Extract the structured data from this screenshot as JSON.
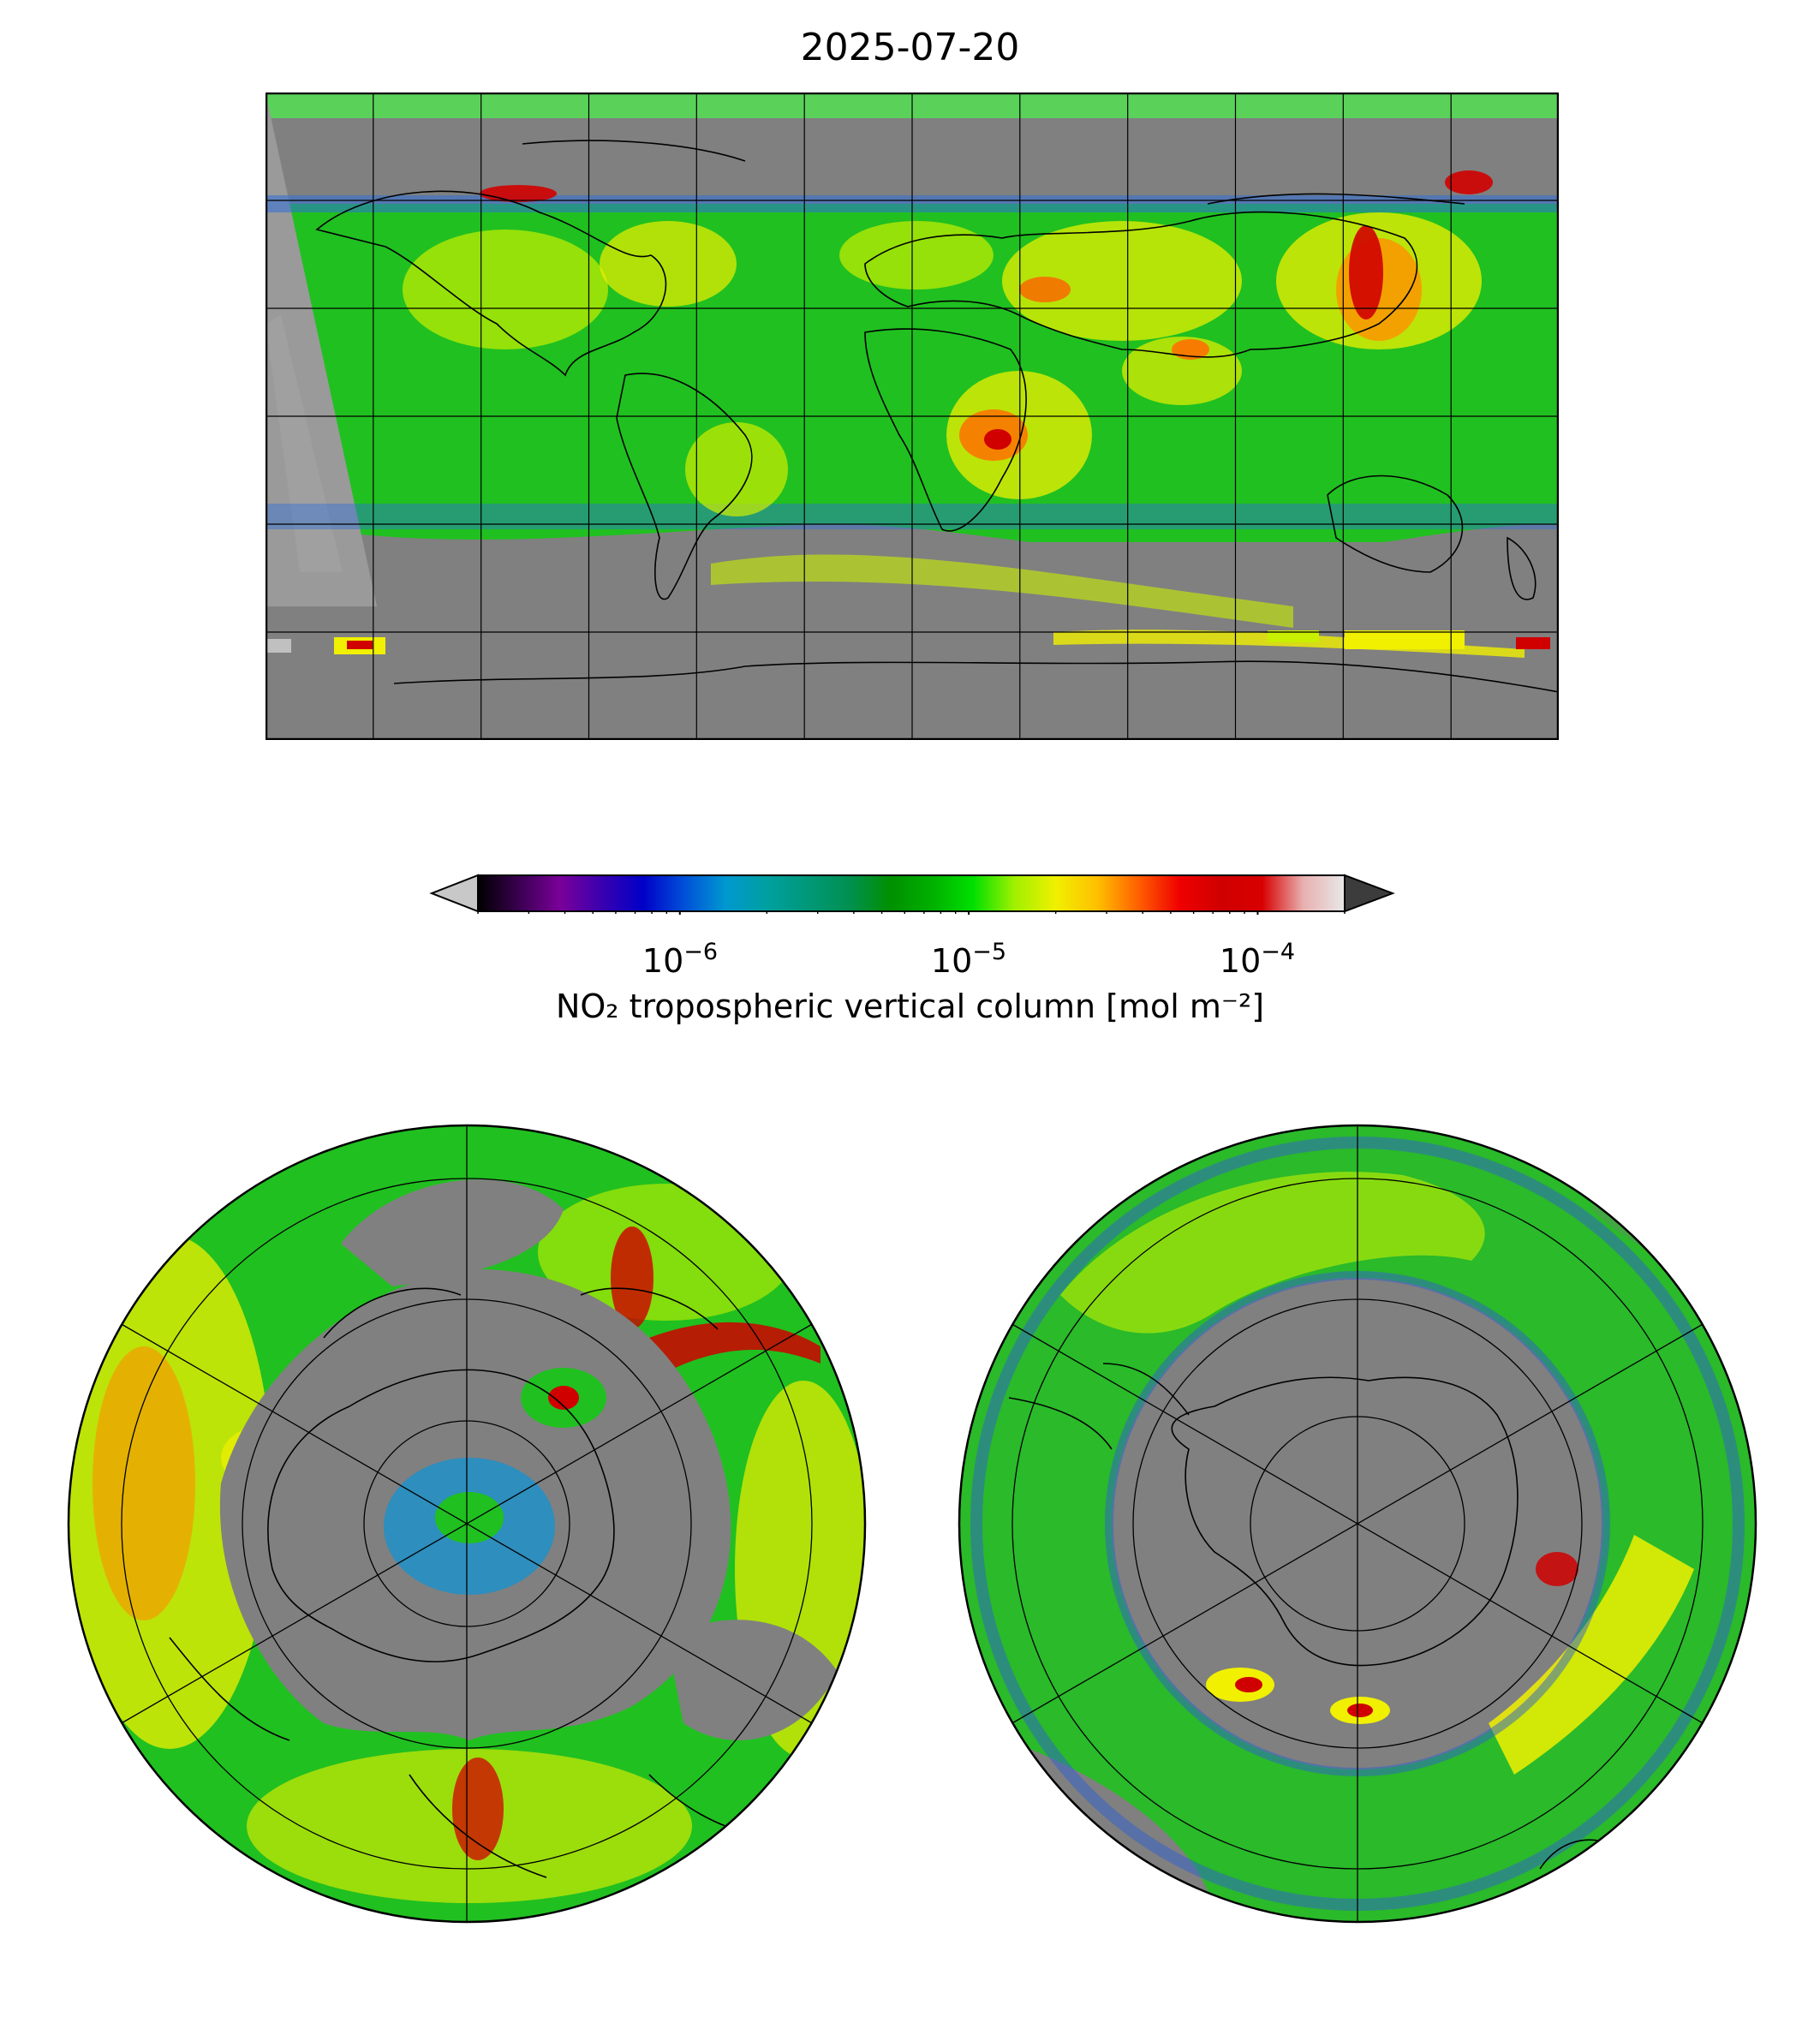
{
  "title": "2025-07-20",
  "colorbar": {
    "tick_labels": [
      {
        "base": "10",
        "exp": "−6",
        "value": 1e-06
      },
      {
        "base": "10",
        "exp": "−5",
        "value": 1e-05
      },
      {
        "base": "10",
        "exp": "−4",
        "value": 0.0001
      }
    ],
    "label": "NO₂ tropospheric vertical column [mol m⁻²]",
    "range": [
      2e-07,
      0.0002
    ],
    "scale": "log",
    "extend": "both",
    "under_color": "#c8c8c8",
    "over_color": "#3c3c3c",
    "colors": [
      "#000000",
      "#3a0050",
      "#7a009a",
      "#3a00b0",
      "#0000c8",
      "#0050d8",
      "#0098d0",
      "#00a0a0",
      "#009878",
      "#009050",
      "#009000",
      "#00b000",
      "#00e000",
      "#a0f000",
      "#f0f000",
      "#ffc000",
      "#ff6000",
      "#f00000",
      "#d00000",
      "#d80000",
      "#e8b0b0",
      "#e8e8e8"
    ]
  },
  "colors": {
    "no_data": "#808080",
    "background_field": "#1ec81e",
    "frame": "#000000"
  },
  "panels": [
    {
      "name": "global",
      "projection": "plate carree",
      "extent": "global",
      "gridlines": true,
      "coastlines": true
    },
    {
      "name": "north-polar",
      "projection": "north polar stereographic",
      "gridlines": true,
      "coastlines": true
    },
    {
      "name": "south-polar",
      "projection": "south polar stereographic",
      "gridlines": true,
      "coastlines": true
    }
  ]
}
